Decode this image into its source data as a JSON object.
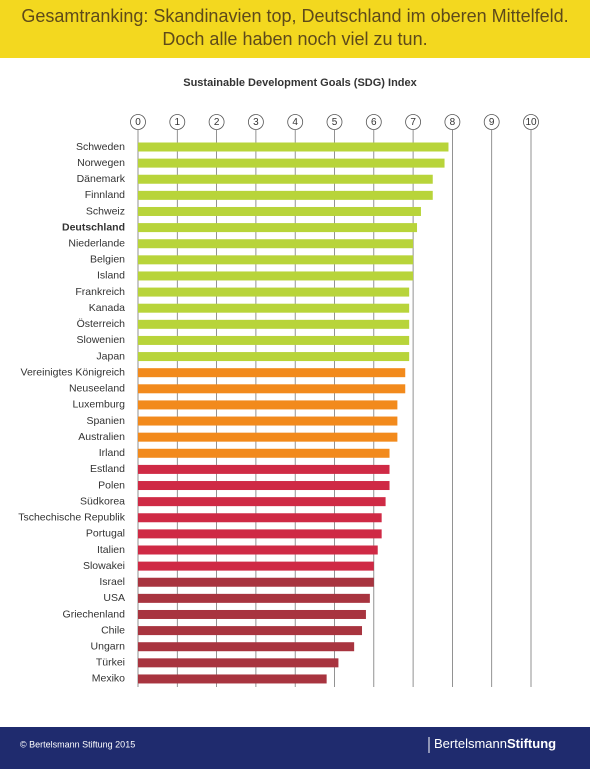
{
  "header": {
    "title_lines": [
      "Gesamtranking: Skandinavien top, Deutschland im oberen Mittelfeld.",
      "Doch alle haben noch viel zu tun."
    ]
  },
  "chart_data": {
    "type": "bar",
    "orientation": "horizontal",
    "title": "Sustainable Development Goals (SDG) Index",
    "categories": [
      "Schweden",
      "Norwegen",
      "Dänemark",
      "Finnland",
      "Schweiz",
      "Deutschland",
      "Niederlande",
      "Belgien",
      "Island",
      "Frankreich",
      "Kanada",
      "Österreich",
      "Slowenien",
      "Japan",
      "Vereinigtes Königreich",
      "Neuseeland",
      "Luxemburg",
      "Spanien",
      "Australien",
      "Irland",
      "Estland",
      "Polen",
      "Südkorea",
      "Tschechische Republik",
      "Portugal",
      "Italien",
      "Slowakei",
      "Israel",
      "USA",
      "Griechenland",
      "Chile",
      "Ungarn",
      "Türkei",
      "Mexiko"
    ],
    "values": [
      7.9,
      7.8,
      7.5,
      7.5,
      7.2,
      7.1,
      7.0,
      7.0,
      7.0,
      6.9,
      6.9,
      6.9,
      6.9,
      6.9,
      6.8,
      6.8,
      6.6,
      6.6,
      6.6,
      6.4,
      6.4,
      6.4,
      6.3,
      6.2,
      6.2,
      6.1,
      6.0,
      6.0,
      5.9,
      5.8,
      5.7,
      5.5,
      5.1,
      4.8
    ],
    "colors": [
      "#b8d43a",
      "#b8d43a",
      "#b8d43a",
      "#b8d43a",
      "#b8d43a",
      "#b8d43a",
      "#b8d43a",
      "#b8d43a",
      "#b8d43a",
      "#b8d43a",
      "#b8d43a",
      "#b8d43a",
      "#b8d43a",
      "#b8d43a",
      "#f28a1c",
      "#f28a1c",
      "#f28a1c",
      "#f28a1c",
      "#f28a1c",
      "#f28a1c",
      "#cf2a45",
      "#cf2a45",
      "#cf2a45",
      "#cf2a45",
      "#cf2a45",
      "#cf2a45",
      "#cf2a45",
      "#a8343f",
      "#a8343f",
      "#a8343f",
      "#a8343f",
      "#a8343f",
      "#a8343f",
      "#a8343f"
    ],
    "highlight_index": 5,
    "xlim": [
      0,
      10
    ],
    "xticks": [
      0,
      1,
      2,
      3,
      4,
      5,
      6,
      7,
      8,
      9,
      10
    ],
    "grid": true
  },
  "footer": {
    "copyright": "© Bertelsmann Stiftung 2015",
    "logo_light": "Bertelsmann",
    "logo_bold": "Stiftung"
  }
}
